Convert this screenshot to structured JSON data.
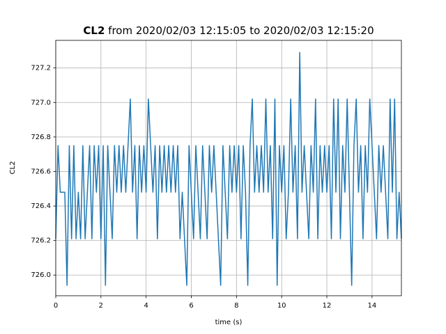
{
  "chart_data": {
    "type": "line",
    "title_bold": "CL2",
    "title": "from 2020/02/03 12:15:05 to 2020/02/03 12:15:20",
    "xlabel": "time (s)",
    "ylabel": "CL2",
    "grid": true,
    "xlim": [
      0,
      15.3
    ],
    "ylim": [
      725.88,
      727.36
    ],
    "xticks": [
      0,
      2,
      4,
      6,
      8,
      10,
      12,
      14
    ],
    "yticks": [
      {
        "value": 726,
        "label": "726.0"
      },
      726.2,
      726.4,
      726.6,
      726.8,
      {
        "value": 727,
        "label": "727.0"
      },
      727.2
    ],
    "x": [
      0,
      0.1,
      0.2,
      0.3,
      0.4,
      0.5,
      0.6,
      0.7,
      0.8,
      0.9,
      1,
      1.1,
      1.2,
      1.3,
      1.4,
      1.5,
      1.6,
      1.7,
      1.8,
      1.9,
      2,
      2.1,
      2.2,
      2.3,
      2.4,
      2.5,
      2.6,
      2.7,
      2.8,
      2.9,
      3,
      3.1,
      3.2,
      3.3,
      3.4,
      3.5,
      3.6,
      3.7,
      3.8,
      3.9,
      4,
      4.1,
      4.2,
      4.3,
      4.4,
      4.5,
      4.6,
      4.7,
      4.8,
      4.9,
      5,
      5.1,
      5.2,
      5.3,
      5.4,
      5.5,
      5.6,
      5.7,
      5.8,
      5.9,
      6,
      6.1,
      6.2,
      6.3,
      6.4,
      6.5,
      6.6,
      6.7,
      6.8,
      6.9,
      7,
      7.1,
      7.2,
      7.3,
      7.4,
      7.5,
      7.6,
      7.7,
      7.8,
      7.9,
      8,
      8.1,
      8.2,
      8.3,
      8.4,
      8.5,
      8.6,
      8.7,
      8.8,
      8.9,
      9,
      9.1,
      9.2,
      9.3,
      9.4,
      9.5,
      9.6,
      9.7,
      9.8,
      9.9,
      10,
      10.1,
      10.2,
      10.3,
      10.4,
      10.5,
      10.6,
      10.7,
      10.8,
      10.9,
      11,
      11.1,
      11.2,
      11.3,
      11.4,
      11.5,
      11.6,
      11.7,
      11.8,
      11.9,
      12,
      12.1,
      12.2,
      12.3,
      12.4,
      12.5,
      12.6,
      12.7,
      12.8,
      12.9,
      13,
      13.1,
      13.2,
      13.3,
      13.4,
      13.5,
      13.6,
      13.7,
      13.8,
      13.9,
      14,
      14.1,
      14.2,
      14.3,
      14.4,
      14.5,
      14.6,
      14.7,
      14.8,
      14.9,
      15,
      15.1,
      15.2,
      15.3
    ],
    "series": [
      {
        "name": "CL2",
        "color": "#1f77b4",
        "values": [
          726.21,
          726.75,
          726.48,
          726.48,
          726.48,
          725.94,
          726.75,
          726.21,
          726.75,
          726.21,
          726.48,
          726.21,
          726.75,
          726.21,
          726.48,
          726.75,
          726.21,
          726.75,
          726.48,
          726.75,
          726.21,
          726.75,
          725.94,
          726.75,
          726.48,
          726.21,
          726.75,
          726.48,
          726.75,
          726.48,
          726.75,
          726.48,
          726.75,
          727.02,
          726.48,
          726.75,
          726.21,
          726.75,
          726.48,
          726.75,
          726.48,
          727.02,
          726.75,
          726.48,
          726.75,
          726.21,
          726.75,
          726.48,
          726.75,
          726.48,
          726.75,
          726.48,
          726.75,
          726.48,
          726.75,
          726.21,
          726.48,
          726.21,
          725.94,
          726.75,
          726.48,
          726.21,
          726.75,
          726.48,
          726.21,
          726.75,
          726.48,
          726.21,
          726.75,
          726.48,
          726.75,
          726.48,
          726.21,
          725.94,
          726.75,
          726.48,
          726.21,
          726.75,
          726.48,
          726.75,
          726.48,
          726.75,
          726.21,
          726.75,
          726.48,
          725.94,
          726.75,
          727.02,
          726.48,
          726.75,
          726.48,
          726.75,
          726.48,
          727.02,
          726.48,
          726.75,
          726.21,
          727.02,
          725.94,
          726.75,
          726.48,
          726.75,
          726.21,
          726.48,
          727.02,
          726.48,
          726.75,
          726.21,
          727.29,
          726.48,
          726.75,
          726.48,
          726.21,
          726.75,
          726.48,
          727.02,
          726.21,
          726.75,
          726.48,
          726.75,
          726.48,
          726.75,
          726.21,
          727.02,
          726.48,
          727.02,
          726.21,
          726.75,
          726.48,
          727.02,
          726.48,
          725.94,
          726.75,
          727.02,
          726.48,
          726.75,
          726.21,
          726.75,
          726.48,
          727.02,
          726.75,
          726.48,
          726.21,
          726.75,
          726.48,
          726.75,
          726.48,
          726.21,
          727.02,
          726.48,
          727.02,
          726.21,
          726.48,
          726.21
        ]
      }
    ]
  }
}
